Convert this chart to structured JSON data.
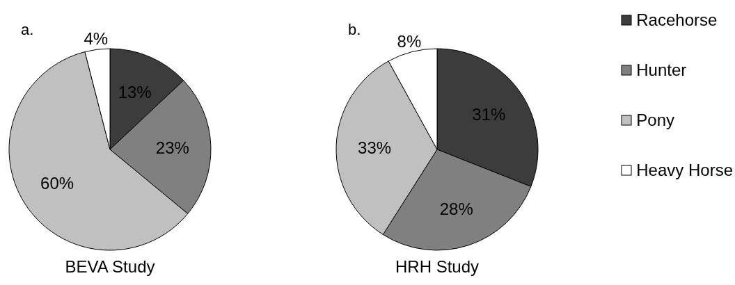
{
  "chart_data": [
    {
      "type": "pie",
      "title": "a.",
      "xlabel": "BEVA Study",
      "categories": [
        null,
        null,
        null,
        null
      ],
      "values": [
        13,
        23,
        60,
        4
      ],
      "colors": [
        "#3c3c3c",
        "#808080",
        "#c0c0c0",
        "#ffffff"
      ],
      "value_labels": [
        "13%",
        "23%",
        "60%",
        "4%"
      ],
      "legend": false
    },
    {
      "type": "pie",
      "title": "b.",
      "xlabel": "HRH Study",
      "categories": [
        "Racehorse",
        "Hunter",
        "Pony",
        "Heavy Horse"
      ],
      "values": [
        31,
        28,
        33,
        8
      ],
      "colors": [
        "#3c3c3c",
        "#808080",
        "#c0c0c0",
        "#ffffff"
      ],
      "value_labels": [
        "31%",
        "28%",
        "33%",
        "8%"
      ],
      "legend": "right"
    }
  ]
}
